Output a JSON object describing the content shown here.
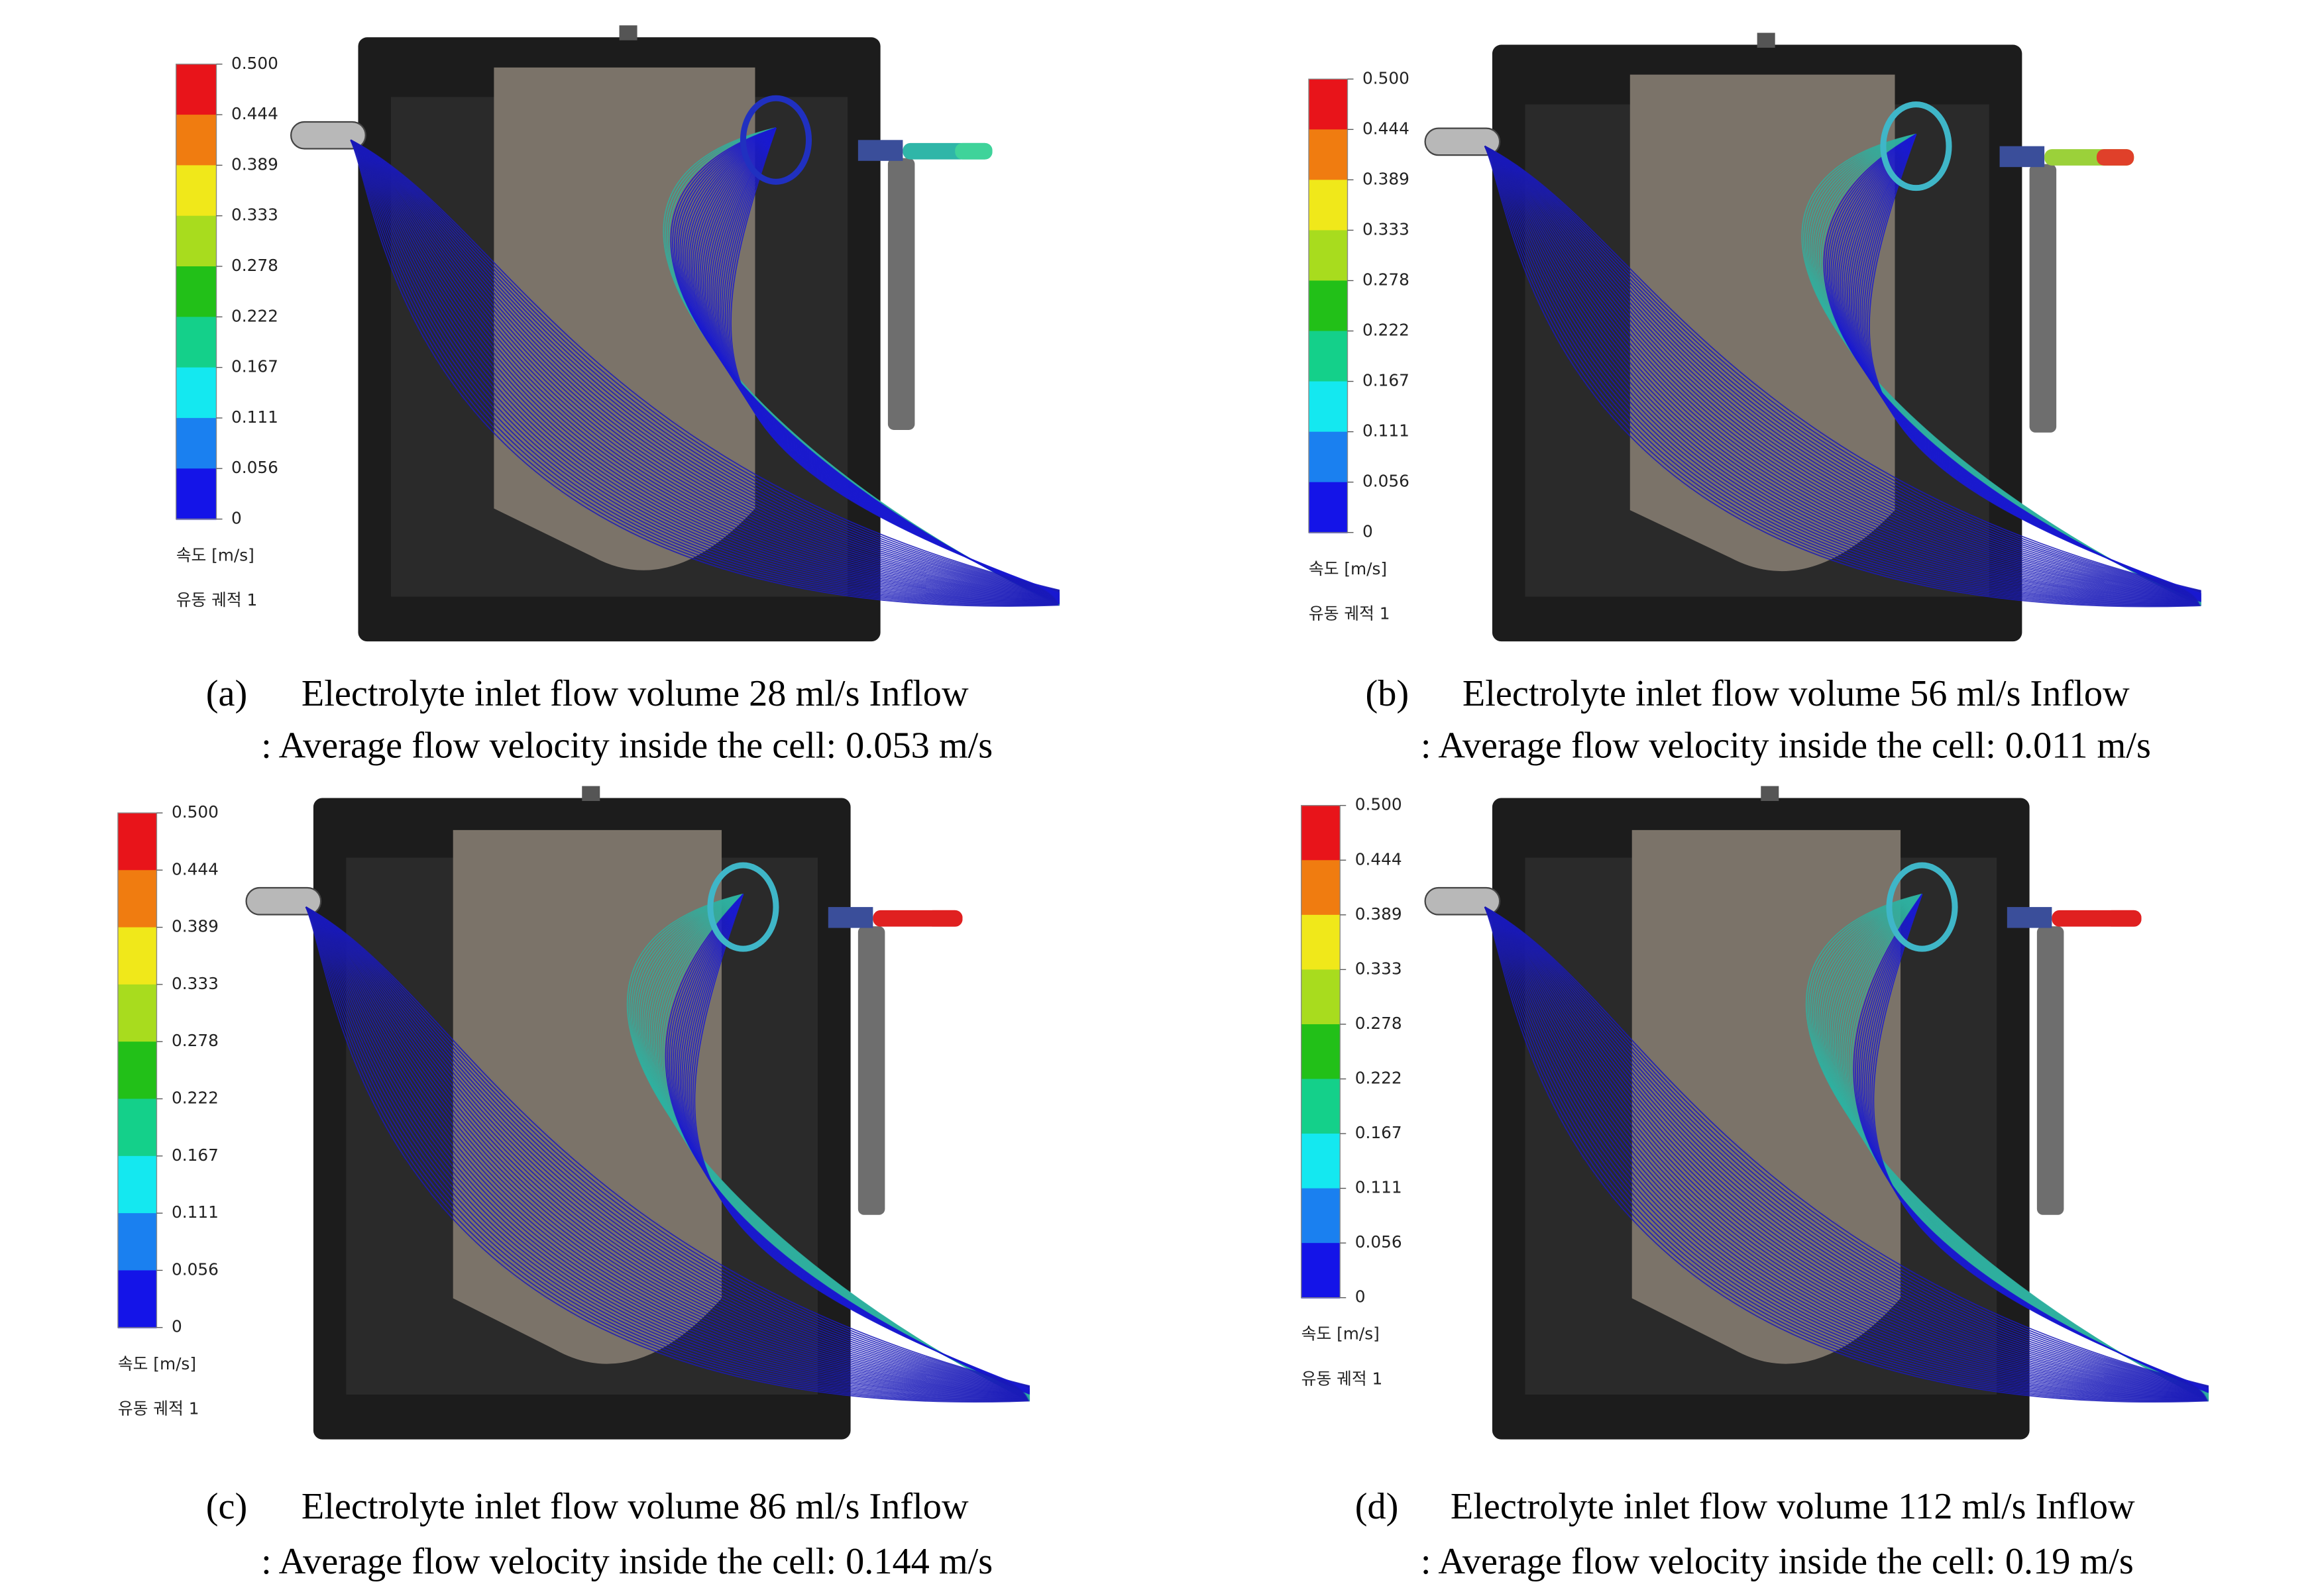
{
  "panels": [
    {
      "label": "(a)",
      "caption": "Electrolyte inlet flow volume 28 ml/s Inflow",
      "subcaption": ": Average flow velocity inside the cell: 0.053 m/s",
      "colorbar": {
        "ticks": [
          "0.500",
          "0.444",
          "0.389",
          "0.333",
          "0.278",
          "0.222",
          "0.167",
          "0.111",
          "0.056",
          "0"
        ],
        "unit": "속도 [m/s]",
        "trajectory": "유동 궤적 1"
      }
    },
    {
      "label": "(b)",
      "caption": "Electrolyte inlet flow volume 56 ml/s Inflow",
      "subcaption": ": Average flow velocity inside the cell: 0.011 m/s",
      "colorbar": {
        "ticks": [
          "0.500",
          "0.444",
          "0.389",
          "0.333",
          "0.278",
          "0.222",
          "0.167",
          "0.111",
          "0.056",
          "0"
        ],
        "unit": "속도 [m/s]",
        "trajectory": "유동 궤적 1"
      }
    },
    {
      "label": "(c)",
      "caption": "Electrolyte inlet flow volume 86 ml/s Inflow",
      "subcaption": ": Average flow velocity inside the cell: 0.144 m/s",
      "colorbar": {
        "ticks": [
          "0.500",
          "0.444",
          "0.389",
          "0.333",
          "0.278",
          "0.222",
          "0.167",
          "0.111",
          "0.056",
          "0"
        ],
        "unit": "속도 [m/s]",
        "trajectory": "유동 궤적 1"
      }
    },
    {
      "label": "(d)",
      "caption": "Electrolyte inlet flow volume 112 ml/s Inflow",
      "subcaption": ": Average flow velocity inside the cell: 0.19 m/s",
      "colorbar": {
        "ticks": [
          "0.500",
          "0.444",
          "0.389",
          "0.333",
          "0.278",
          "0.222",
          "0.167",
          "0.111",
          "0.056",
          "0"
        ],
        "unit": "속도 [m/s]",
        "trajectory": "유동 궤적 1"
      }
    }
  ]
}
